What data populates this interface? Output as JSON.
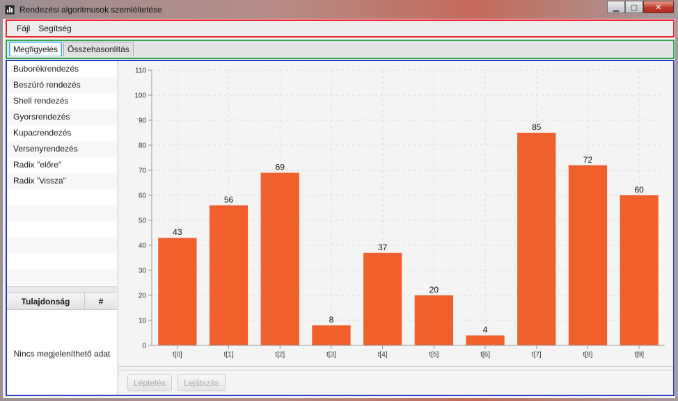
{
  "window": {
    "title": "Rendezési algoritmusok szemléltetése"
  },
  "menu": {
    "items": [
      "Fájl",
      "Segítség"
    ]
  },
  "tabs": [
    {
      "label": "Megfigyelés",
      "active": true
    },
    {
      "label": "Összehasonlítás",
      "active": false
    }
  ],
  "algorithms": [
    "Buborékrendezés",
    "Beszúró rendezés",
    "Shell rendezés",
    "Gyorsrendezés",
    "Kupacrendezés",
    "Versenyrendezés",
    "Radix \"előre\"",
    "Radix \"vissza\""
  ],
  "properties": {
    "col_property": "Tulajdonság",
    "col_hash": "#",
    "empty_text": "Nincs megjeleníthető adat"
  },
  "buttons": {
    "step": "Léptetés",
    "play": "Lejátszás"
  },
  "colors": {
    "bar": "#f0602d",
    "menu_border": "#e8262e",
    "tab_border": "#2ea84a",
    "main_border": "#2c3bc4"
  },
  "chart_data": {
    "type": "bar",
    "categories": [
      "t[0]",
      "t[1]",
      "t[2]",
      "t[3]",
      "t[4]",
      "t[5]",
      "t[6]",
      "t[7]",
      "t[8]",
      "t[9]"
    ],
    "values": [
      43,
      56,
      69,
      8,
      37,
      20,
      4,
      85,
      72,
      60
    ],
    "data_labels": [
      "43",
      "56",
      "69",
      "8",
      "37",
      "20",
      "4",
      "85",
      "72",
      "60"
    ],
    "ylim": [
      0,
      110
    ],
    "yticks": [
      0,
      10,
      20,
      30,
      40,
      50,
      60,
      70,
      80,
      90,
      100,
      110
    ],
    "grid": true,
    "title": "",
    "xlabel": "",
    "ylabel": ""
  }
}
